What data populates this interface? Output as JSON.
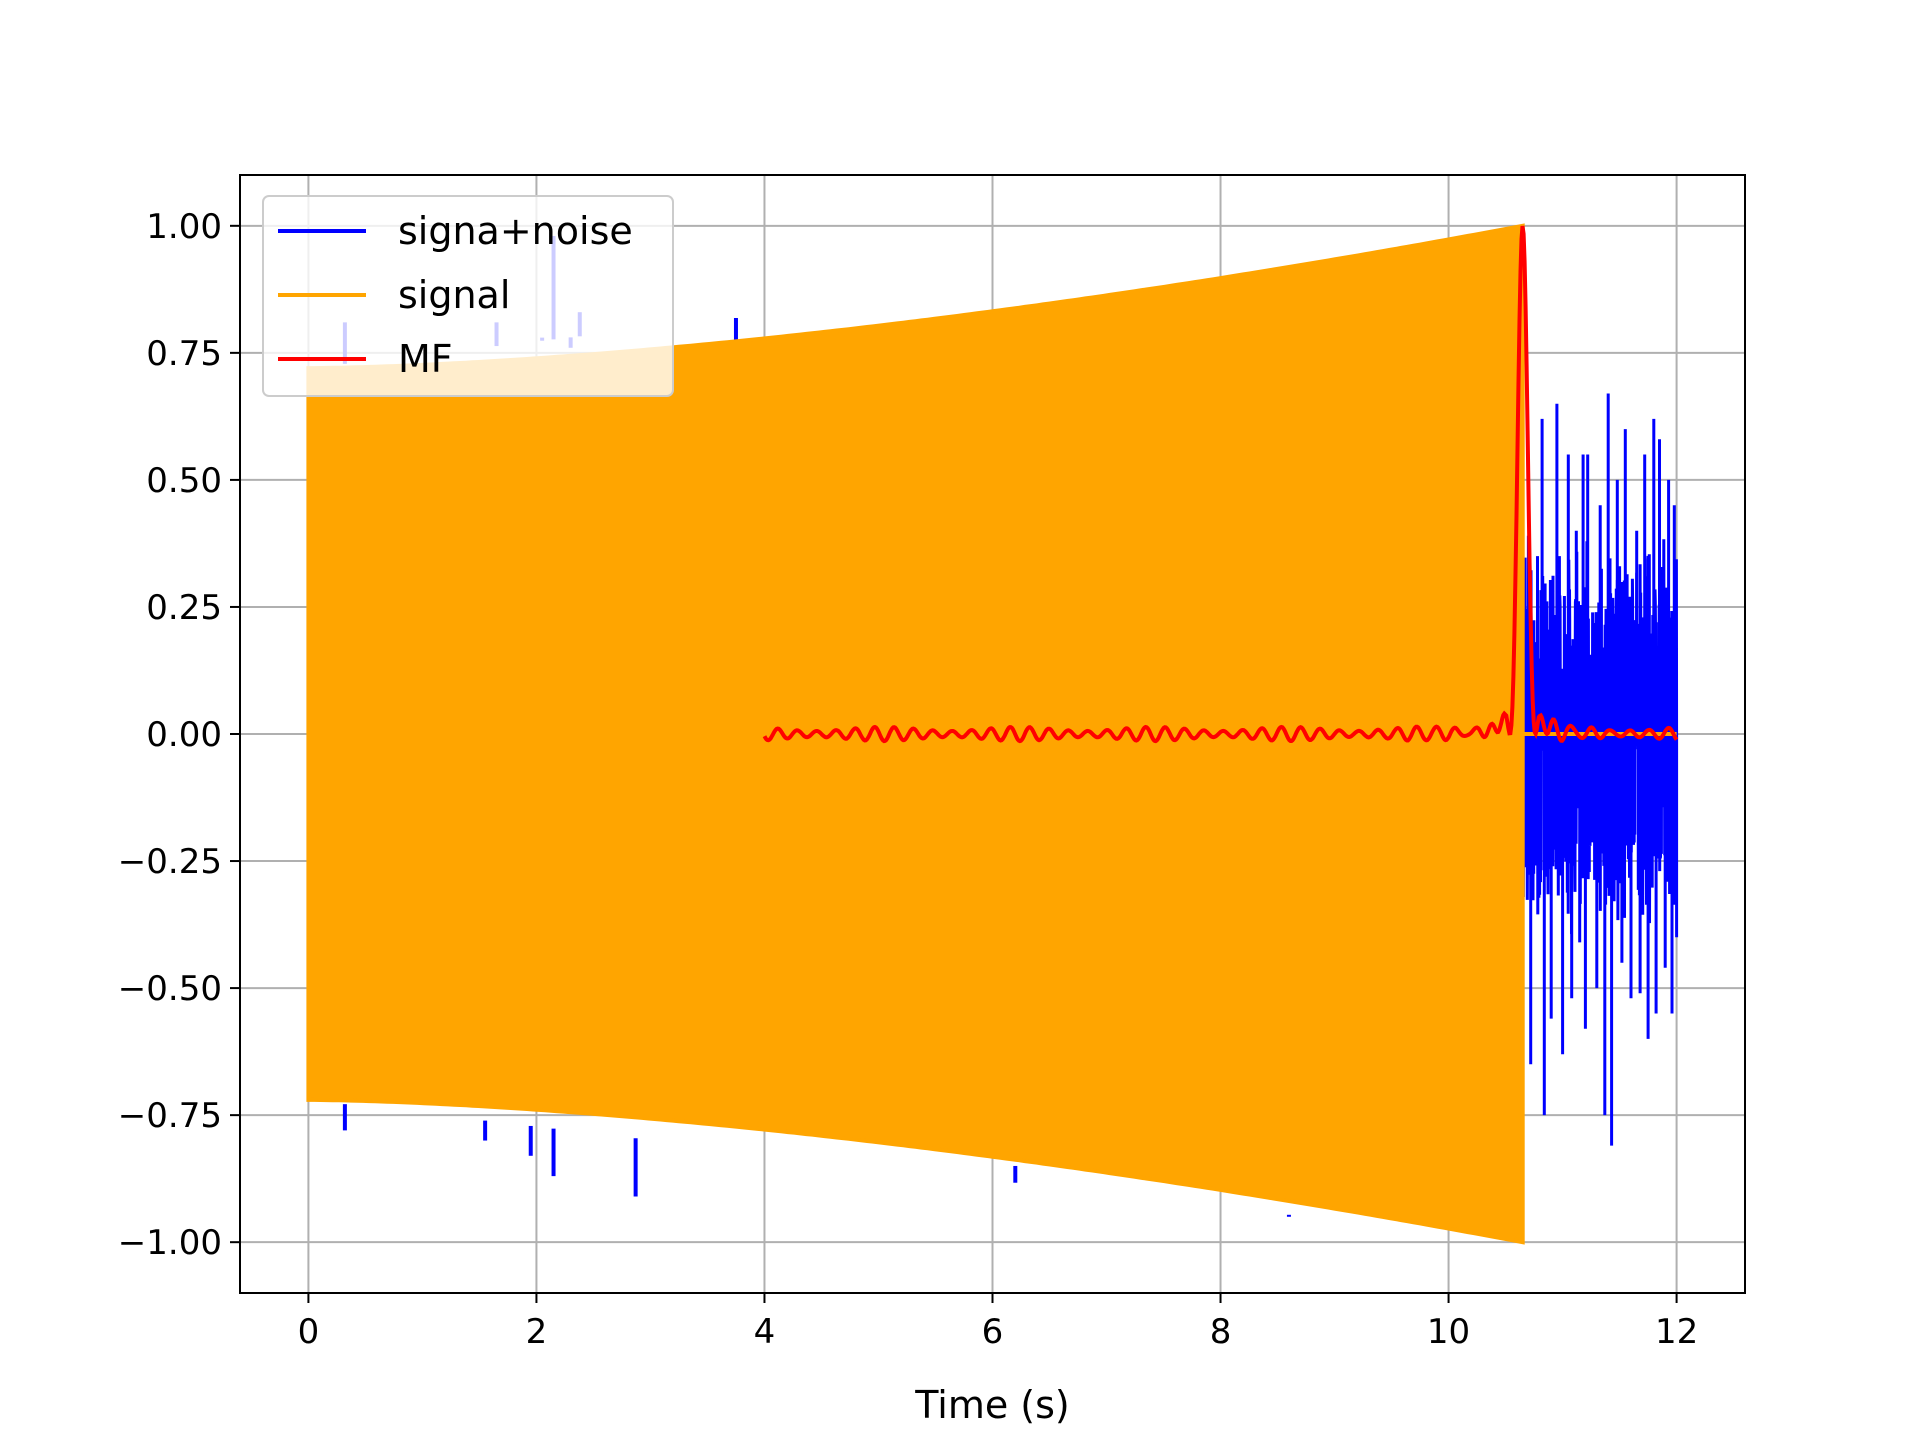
{
  "chart_data": {
    "type": "line",
    "title": "",
    "xlabel": "Time (s)",
    "ylabel": "",
    "xlim": [
      -0.6,
      12.6
    ],
    "ylim": [
      -1.1,
      1.1
    ],
    "x_ticks": [
      0,
      2,
      4,
      6,
      8,
      10,
      12
    ],
    "x_tick_labels": [
      "0",
      "2",
      "4",
      "6",
      "8",
      "10",
      "12"
    ],
    "y_ticks": [
      1.0,
      0.75,
      0.5,
      0.25,
      0.0,
      -0.25,
      -0.5,
      -0.75,
      -1.0
    ],
    "y_tick_labels": [
      "1.00",
      "0.75",
      "0.50",
      "0.25",
      "0.00",
      "−0.25",
      "−0.50",
      "−0.75",
      "−1.00"
    ],
    "grid": true,
    "legend_position": "upper-left",
    "series": [
      {
        "name": "signa+noise",
        "color": "#0000ff",
        "segment_x": [
          0,
          10.65
        ],
        "envelope_start": 0.72,
        "envelope_end": 1.0,
        "spikes": [
          {
            "x": 0.32,
            "y": 0.81
          },
          {
            "x": 0.32,
            "y": -0.78
          },
          {
            "x": 1.55,
            "y": -0.8
          },
          {
            "x": 1.65,
            "y": 0.81
          },
          {
            "x": 1.95,
            "y": -0.83
          },
          {
            "x": 2.05,
            "y": 0.78
          },
          {
            "x": 2.15,
            "y": 0.98
          },
          {
            "x": 2.15,
            "y": -0.87
          },
          {
            "x": 2.3,
            "y": 0.76
          },
          {
            "x": 2.38,
            "y": 0.83
          },
          {
            "x": 2.87,
            "y": -0.91
          },
          {
            "x": 3.75,
            "y": 0.77
          },
          {
            "x": 6.2,
            "y": -0.85
          },
          {
            "x": 8.6,
            "y": -0.95
          }
        ],
        "noise_segment_x": [
          10.65,
          12.0
        ],
        "noise_amplitude": 0.4,
        "noise_peaks": [
          {
            "x": 10.7,
            "y": 0.39
          },
          {
            "x": 10.72,
            "y": -0.65
          },
          {
            "x": 10.78,
            "y": 0.35
          },
          {
            "x": 10.82,
            "y": 0.62
          },
          {
            "x": 10.84,
            "y": -0.75
          },
          {
            "x": 10.9,
            "y": -0.56
          },
          {
            "x": 10.95,
            "y": 0.65
          },
          {
            "x": 11.0,
            "y": -0.63
          },
          {
            "x": 11.05,
            "y": 0.55
          },
          {
            "x": 11.08,
            "y": -0.52
          },
          {
            "x": 11.12,
            "y": 0.4
          },
          {
            "x": 11.15,
            "y": -0.41
          },
          {
            "x": 11.18,
            "y": 0.55
          },
          {
            "x": 11.2,
            "y": -0.58
          },
          {
            "x": 11.22,
            "y": 0.55
          },
          {
            "x": 11.3,
            "y": -0.5
          },
          {
            "x": 11.33,
            "y": 0.45
          },
          {
            "x": 11.37,
            "y": -0.75
          },
          {
            "x": 11.4,
            "y": 0.67
          },
          {
            "x": 11.43,
            "y": -0.81
          },
          {
            "x": 11.48,
            "y": 0.5
          },
          {
            "x": 11.52,
            "y": -0.45
          },
          {
            "x": 11.55,
            "y": 0.6
          },
          {
            "x": 11.6,
            "y": -0.52
          },
          {
            "x": 11.65,
            "y": 0.4
          },
          {
            "x": 11.68,
            "y": -0.51
          },
          {
            "x": 11.72,
            "y": 0.55
          },
          {
            "x": 11.75,
            "y": -0.6
          },
          {
            "x": 11.8,
            "y": 0.62
          },
          {
            "x": 11.82,
            "y": -0.55
          },
          {
            "x": 11.85,
            "y": 0.58
          },
          {
            "x": 11.9,
            "y": -0.46
          },
          {
            "x": 11.93,
            "y": 0.5
          },
          {
            "x": 11.96,
            "y": -0.55
          },
          {
            "x": 11.98,
            "y": 0.45
          },
          {
            "x": 12.0,
            "y": -0.4
          }
        ]
      },
      {
        "name": "signal",
        "color": "#ffa500",
        "x_start": 0,
        "x_end": 10.65,
        "envelope_start": 0.72,
        "envelope_end": 1.0,
        "post_value": 0.0,
        "post_x_end": 12.0
      },
      {
        "name": "MF",
        "color": "#ff0000",
        "x_start": 4.0,
        "x_end": 12.0,
        "peak_x": 10.65,
        "peak_y": 1.0,
        "baseline_noise": 0.01
      }
    ]
  }
}
